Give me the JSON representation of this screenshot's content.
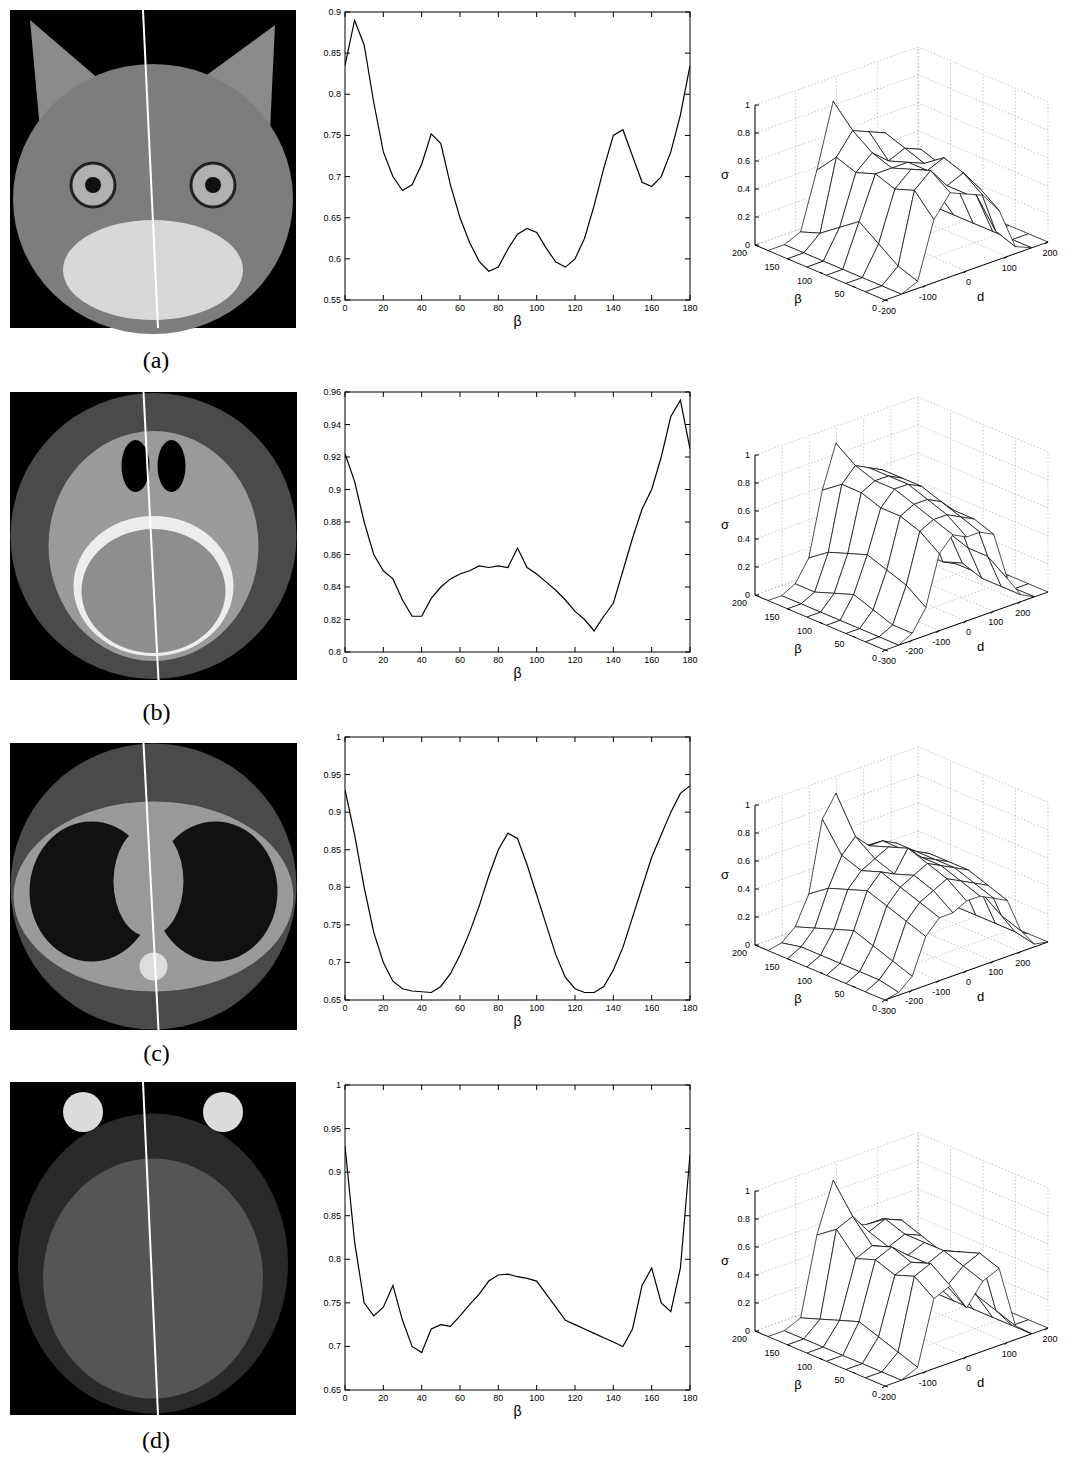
{
  "chart_data": [
    {
      "type": "line",
      "xlabel": "β",
      "x": [
        0,
        5,
        10,
        15,
        20,
        25,
        30,
        35,
        40,
        45,
        50,
        55,
        60,
        65,
        70,
        75,
        80,
        85,
        90,
        95,
        100,
        105,
        110,
        115,
        120,
        125,
        130,
        135,
        140,
        145,
        150,
        155,
        160,
        165,
        170,
        175,
        180
      ],
      "series": [
        {
          "color": "#000000",
          "values": [
            0.835,
            0.89,
            0.86,
            0.79,
            0.73,
            0.7,
            0.683,
            0.69,
            0.715,
            0.752,
            0.74,
            0.69,
            0.65,
            0.62,
            0.597,
            0.585,
            0.59,
            0.612,
            0.63,
            0.637,
            0.632,
            0.613,
            0.596,
            0.59,
            0.6,
            0.625,
            0.665,
            0.71,
            0.75,
            0.757,
            0.725,
            0.693,
            0.688,
            0.7,
            0.73,
            0.775,
            0.835
          ]
        }
      ],
      "xlim": [
        0,
        180
      ],
      "ylim": [
        0.55,
        0.9
      ],
      "xticks": [
        0,
        20,
        40,
        60,
        80,
        100,
        120,
        140,
        160,
        180
      ],
      "yticks": [
        0.55,
        0.6,
        0.65,
        0.7,
        0.75,
        0.8,
        0.85,
        0.9
      ]
    },
    {
      "type": "surface",
      "xlabel": "d",
      "ylabel": "β",
      "zlabel": "σ",
      "x": [
        -200,
        -160,
        -120,
        -80,
        -40,
        0,
        40,
        80,
        120,
        160,
        200
      ],
      "y": [
        0,
        30,
        60,
        90,
        120,
        150,
        180
      ],
      "z": [
        [
          0,
          0,
          0.05,
          0.45,
          0.6,
          0.55,
          0.5,
          0.35,
          0.05,
          0,
          0
        ],
        [
          0,
          0,
          0.1,
          0.6,
          0.7,
          0.55,
          0.6,
          0.45,
          0.1,
          0,
          0
        ],
        [
          0,
          0,
          0.2,
          0.55,
          0.65,
          0.6,
          0.65,
          0.5,
          0.3,
          0,
          0
        ],
        [
          0,
          0,
          0.3,
          0.6,
          0.6,
          0.6,
          0.55,
          0.5,
          0.3,
          0,
          0
        ],
        [
          0,
          0,
          0.2,
          0.55,
          0.65,
          0.55,
          0.6,
          0.55,
          0.2,
          0,
          0
        ],
        [
          0,
          0,
          0.1,
          0.6,
          0.75,
          0.7,
          0.65,
          0.4,
          0.05,
          0,
          0
        ],
        [
          0,
          0,
          0.05,
          0.45,
          0.9,
          0.6,
          0.55,
          0.35,
          0.05,
          0,
          0
        ]
      ],
      "xlim": [
        -200,
        200
      ],
      "ylim": [
        0,
        200
      ],
      "zlim": [
        0,
        1
      ],
      "xticks": [
        -200,
        -100,
        0,
        100,
        200
      ],
      "yticks": [
        0,
        50,
        100,
        150,
        200
      ],
      "zticks": [
        0,
        0.2,
        0.4,
        0.6,
        0.8,
        1
      ],
      "grid": true
    },
    {
      "type": "line",
      "xlabel": "β",
      "x": [
        0,
        5,
        10,
        15,
        20,
        25,
        30,
        35,
        40,
        45,
        50,
        55,
        60,
        65,
        70,
        75,
        80,
        85,
        90,
        95,
        100,
        105,
        110,
        115,
        120,
        125,
        130,
        135,
        140,
        145,
        150,
        155,
        160,
        165,
        170,
        175,
        180
      ],
      "series": [
        {
          "color": "#000000",
          "values": [
            0.922,
            0.905,
            0.88,
            0.86,
            0.85,
            0.845,
            0.832,
            0.822,
            0.822,
            0.833,
            0.84,
            0.845,
            0.848,
            0.85,
            0.853,
            0.852,
            0.853,
            0.852,
            0.864,
            0.852,
            0.848,
            0.843,
            0.838,
            0.832,
            0.825,
            0.82,
            0.813,
            0.822,
            0.83,
            0.85,
            0.87,
            0.888,
            0.9,
            0.92,
            0.945,
            0.955,
            0.925
          ]
        }
      ],
      "xlim": [
        0,
        180
      ],
      "ylim": [
        0.8,
        0.96
      ],
      "xticks": [
        0,
        20,
        40,
        60,
        80,
        100,
        120,
        140,
        160,
        180
      ],
      "yticks": [
        0.8,
        0.82,
        0.84,
        0.86,
        0.88,
        0.9,
        0.92,
        0.94,
        0.96
      ]
    },
    {
      "type": "surface",
      "xlabel": "d",
      "ylabel": "β",
      "zlabel": "σ",
      "x": [
        -300,
        -250,
        -200,
        -150,
        -100,
        -50,
        0,
        50,
        100,
        150,
        200,
        250,
        300
      ],
      "y": [
        0,
        30,
        60,
        90,
        120,
        150,
        180
      ],
      "z": [
        [
          0,
          0,
          0.05,
          0.2,
          0.55,
          0.65,
          0.6,
          0.6,
          0.55,
          0.2,
          0.05,
          0,
          0
        ],
        [
          0,
          0,
          0.05,
          0.3,
          0.65,
          0.7,
          0.7,
          0.65,
          0.6,
          0.3,
          0.05,
          0,
          0
        ],
        [
          0,
          0,
          0.1,
          0.35,
          0.7,
          0.75,
          0.75,
          0.7,
          0.6,
          0.3,
          0.05,
          0,
          0
        ],
        [
          0,
          0,
          0.15,
          0.4,
          0.7,
          0.8,
          0.8,
          0.75,
          0.6,
          0.35,
          0.1,
          0,
          0
        ],
        [
          0,
          0,
          0.1,
          0.35,
          0.75,
          0.8,
          0.8,
          0.75,
          0.65,
          0.35,
          0.05,
          0,
          0
        ],
        [
          0,
          0,
          0.05,
          0.3,
          0.75,
          0.85,
          0.8,
          0.75,
          0.65,
          0.3,
          0.05,
          0,
          0
        ],
        [
          0,
          0,
          0.05,
          0.2,
          0.65,
          0.95,
          0.75,
          0.7,
          0.6,
          0.2,
          0.05,
          0,
          0
        ]
      ],
      "xlim": [
        -300,
        300
      ],
      "ylim": [
        0,
        200
      ],
      "zlim": [
        0,
        1
      ],
      "xticks": [
        -300,
        -200,
        -100,
        0,
        100,
        200
      ],
      "yticks": [
        0,
        50,
        100,
        150,
        200
      ],
      "zticks": [
        0,
        0.2,
        0.4,
        0.6,
        0.8,
        1
      ],
      "grid": true
    },
    {
      "type": "line",
      "xlabel": "β",
      "x": [
        0,
        5,
        10,
        15,
        20,
        25,
        30,
        35,
        40,
        45,
        50,
        55,
        60,
        65,
        70,
        75,
        80,
        85,
        90,
        95,
        100,
        105,
        110,
        115,
        120,
        125,
        130,
        135,
        140,
        145,
        150,
        155,
        160,
        165,
        170,
        175,
        180
      ],
      "series": [
        {
          "color": "#000000",
          "values": [
            0.93,
            0.87,
            0.8,
            0.74,
            0.7,
            0.675,
            0.665,
            0.662,
            0.661,
            0.66,
            0.668,
            0.685,
            0.71,
            0.74,
            0.775,
            0.815,
            0.85,
            0.872,
            0.865,
            0.83,
            0.79,
            0.75,
            0.71,
            0.68,
            0.665,
            0.66,
            0.66,
            0.668,
            0.69,
            0.72,
            0.76,
            0.8,
            0.84,
            0.87,
            0.9,
            0.925,
            0.935
          ]
        }
      ],
      "xlim": [
        0,
        180
      ],
      "ylim": [
        0.65,
        1
      ],
      "xticks": [
        0,
        20,
        40,
        60,
        80,
        100,
        120,
        140,
        160,
        180
      ],
      "yticks": [
        0.65,
        0.7,
        0.75,
        0.8,
        0.85,
        0.9,
        0.95,
        1
      ]
    },
    {
      "type": "surface",
      "xlabel": "d",
      "ylabel": "β",
      "zlabel": "σ",
      "x": [
        -300,
        -250,
        -200,
        -150,
        -100,
        -50,
        0,
        50,
        100,
        150,
        200,
        250,
        300
      ],
      "y": [
        0,
        30,
        60,
        90,
        120,
        150,
        180
      ],
      "z": [
        [
          0,
          0.02,
          0.1,
          0.35,
          0.45,
          0.45,
          0.5,
          0.5,
          0.45,
          0.4,
          0.15,
          0.02,
          0
        ],
        [
          0,
          0.05,
          0.15,
          0.4,
          0.5,
          0.55,
          0.6,
          0.55,
          0.5,
          0.45,
          0.2,
          0.05,
          0
        ],
        [
          0,
          0.05,
          0.2,
          0.45,
          0.55,
          0.6,
          0.65,
          0.6,
          0.55,
          0.5,
          0.3,
          0.05,
          0
        ],
        [
          0,
          0.05,
          0.25,
          0.5,
          0.6,
          0.55,
          0.7,
          0.6,
          0.55,
          0.5,
          0.3,
          0.05,
          0
        ],
        [
          0,
          0.05,
          0.2,
          0.45,
          0.55,
          0.6,
          0.65,
          0.6,
          0.55,
          0.5,
          0.3,
          0.05,
          0
        ],
        [
          0,
          0.05,
          0.15,
          0.4,
          0.6,
          0.7,
          0.6,
          0.6,
          0.55,
          0.45,
          0.2,
          0.05,
          0
        ],
        [
          0,
          0.02,
          0.1,
          0.3,
          0.8,
          0.95,
          0.6,
          0.5,
          0.45,
          0.4,
          0.15,
          0.02,
          0
        ]
      ],
      "xlim": [
        -300,
        300
      ],
      "ylim": [
        0,
        200
      ],
      "zlim": [
        0,
        1
      ],
      "xticks": [
        -300,
        -200,
        -100,
        0,
        100,
        200
      ],
      "yticks": [
        0,
        50,
        100,
        150,
        200
      ],
      "zticks": [
        0,
        0.2,
        0.4,
        0.6,
        0.8,
        1
      ],
      "grid": true
    },
    {
      "type": "line",
      "xlabel": "β",
      "x": [
        0,
        5,
        10,
        15,
        20,
        25,
        30,
        35,
        40,
        45,
        50,
        55,
        60,
        65,
        70,
        75,
        80,
        85,
        90,
        95,
        100,
        105,
        110,
        115,
        120,
        125,
        130,
        135,
        140,
        145,
        150,
        155,
        160,
        165,
        170,
        175,
        180
      ],
      "series": [
        {
          "color": "#000000",
          "values": [
            0.93,
            0.82,
            0.75,
            0.735,
            0.745,
            0.77,
            0.73,
            0.7,
            0.693,
            0.72,
            0.725,
            0.723,
            0.735,
            0.748,
            0.76,
            0.775,
            0.782,
            0.783,
            0.78,
            0.778,
            0.775,
            0.76,
            0.745,
            0.73,
            0.725,
            0.72,
            0.715,
            0.71,
            0.705,
            0.7,
            0.72,
            0.77,
            0.79,
            0.75,
            0.74,
            0.79,
            0.92
          ]
        }
      ],
      "xlim": [
        0,
        180
      ],
      "ylim": [
        0.65,
        1
      ],
      "xticks": [
        0,
        20,
        40,
        60,
        80,
        100,
        120,
        140,
        160,
        180
      ],
      "yticks": [
        0.65,
        0.7,
        0.75,
        0.8,
        0.85,
        0.9,
        0.95,
        1
      ]
    },
    {
      "type": "surface",
      "xlabel": "d",
      "ylabel": "β",
      "zlabel": "σ",
      "x": [
        -200,
        -160,
        -120,
        -80,
        -40,
        0,
        40,
        80,
        120,
        160,
        200
      ],
      "y": [
        0,
        30,
        60,
        90,
        120,
        150,
        180
      ],
      "z": [
        [
          0,
          0,
          0.05,
          0.5,
          0.55,
          0.35,
          0.5,
          0.55,
          0.1,
          0,
          0
        ],
        [
          0,
          0,
          0.1,
          0.6,
          0.65,
          0.45,
          0.55,
          0.6,
          0.15,
          0,
          0
        ],
        [
          0,
          0,
          0.15,
          0.55,
          0.6,
          0.55,
          0.6,
          0.55,
          0.2,
          0,
          0
        ],
        [
          0,
          0,
          0.2,
          0.6,
          0.65,
          0.55,
          0.6,
          0.5,
          0.2,
          0,
          0
        ],
        [
          0,
          0,
          0.15,
          0.55,
          0.6,
          0.55,
          0.6,
          0.55,
          0.15,
          0,
          0
        ],
        [
          0,
          0,
          0.1,
          0.7,
          0.75,
          0.6,
          0.65,
          0.6,
          0.1,
          0,
          0
        ],
        [
          0,
          0,
          0.05,
          0.6,
          0.95,
          0.6,
          0.55,
          0.55,
          0.05,
          0,
          0
        ]
      ],
      "xlim": [
        -200,
        200
      ],
      "ylim": [
        0,
        200
      ],
      "zlim": [
        0,
        1
      ],
      "xticks": [
        -200,
        -100,
        0,
        100,
        200
      ],
      "yticks": [
        0,
        50,
        100,
        150,
        200
      ],
      "zticks": [
        0,
        0.2,
        0.4,
        0.6,
        0.8,
        1
      ],
      "grid": true
    }
  ],
  "panel_labels": [
    "(a)",
    "(b)",
    "(c)",
    "(d)"
  ]
}
